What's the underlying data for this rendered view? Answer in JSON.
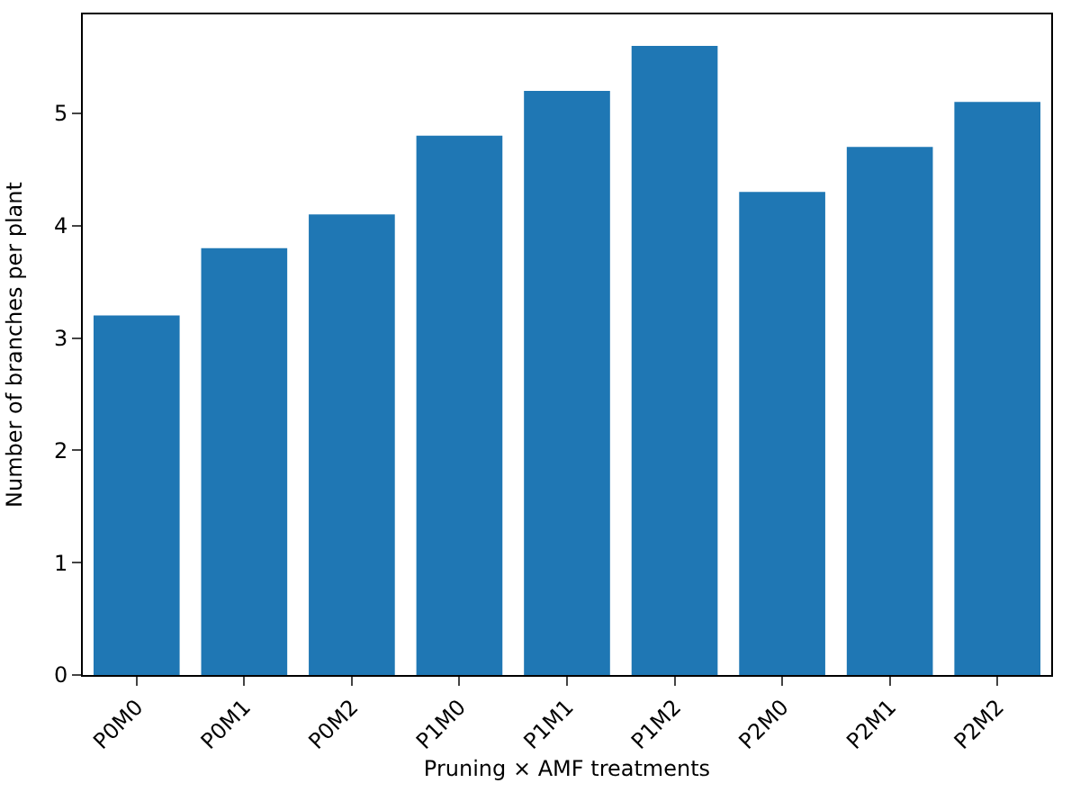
{
  "chart_data": {
    "type": "bar",
    "xlabel": "Pruning × AMF treatments",
    "ylabel": "Number of branches per plant",
    "categories": [
      "P0M0",
      "P0M1",
      "P0M2",
      "P1M0",
      "P1M1",
      "P1M2",
      "P2M0",
      "P2M1",
      "P2M2"
    ],
    "values": [
      3.2,
      3.8,
      4.1,
      4.8,
      5.2,
      5.6,
      4.3,
      4.7,
      5.1
    ],
    "color": "#1f77b4",
    "ylim": [
      0,
      5.88
    ],
    "yticks": [
      0,
      1,
      2,
      3,
      4,
      5
    ],
    "grid": false,
    "legend": false
  }
}
